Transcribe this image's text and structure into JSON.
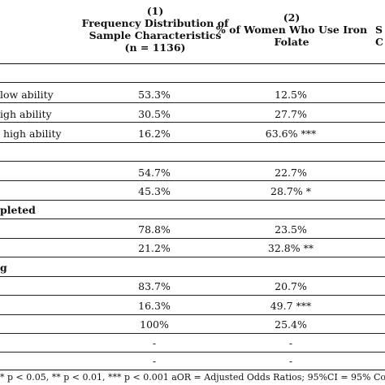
{
  "headers": {
    "col1": {
      "num": "(1)",
      "lines": [
        "Frequency Distribution of",
        "Sample Characteristics",
        "(n = 1136)"
      ]
    },
    "col2": {
      "num": "(2)",
      "lines": [
        "% of Women Who Use Iron",
        "Folate"
      ]
    },
    "col3_partial": {
      "line1": "S",
      "line2": "C"
    }
  },
  "rows": [
    {
      "label": "low ability",
      "col1": "53.3%",
      "col2": "12.5%"
    },
    {
      "label": "igh ability",
      "col1": "30.5%",
      "col2": "27.7%"
    },
    {
      "label": " high ability",
      "col1": "16.2%",
      "col2": "63.6% ***"
    },
    {
      "label": "",
      "col1": "",
      "col2": ""
    },
    {
      "label": "",
      "col1": "54.7%",
      "col2": "22.7%"
    },
    {
      "label": "",
      "col1": "45.3%",
      "col2": "28.7% *"
    },
    {
      "label": "pleted",
      "col1": "",
      "col2": "",
      "section": true
    },
    {
      "label": "",
      "col1": "78.8%",
      "col2": "23.5%"
    },
    {
      "label": "",
      "col1": "21.2%",
      "col2": "32.8% **"
    },
    {
      "label": "g",
      "col1": "",
      "col2": "",
      "section": true
    },
    {
      "label": "",
      "col1": "83.7%",
      "col2": "20.7%"
    },
    {
      "label": "",
      "col1": "16.3%",
      "col2": "49.7 ***"
    },
    {
      "label": "",
      "col1": "100%",
      "col2": "25.4%"
    },
    {
      "label": "",
      "col1": "-",
      "col2": "-"
    },
    {
      "label": "",
      "col1": "-",
      "col2": "-"
    }
  ],
  "footnote": "* p < 0.05, ** p < 0.01, *** p < 0.001 aOR = Adjusted Odds Ratios; 95%CI = 95% Con"
}
